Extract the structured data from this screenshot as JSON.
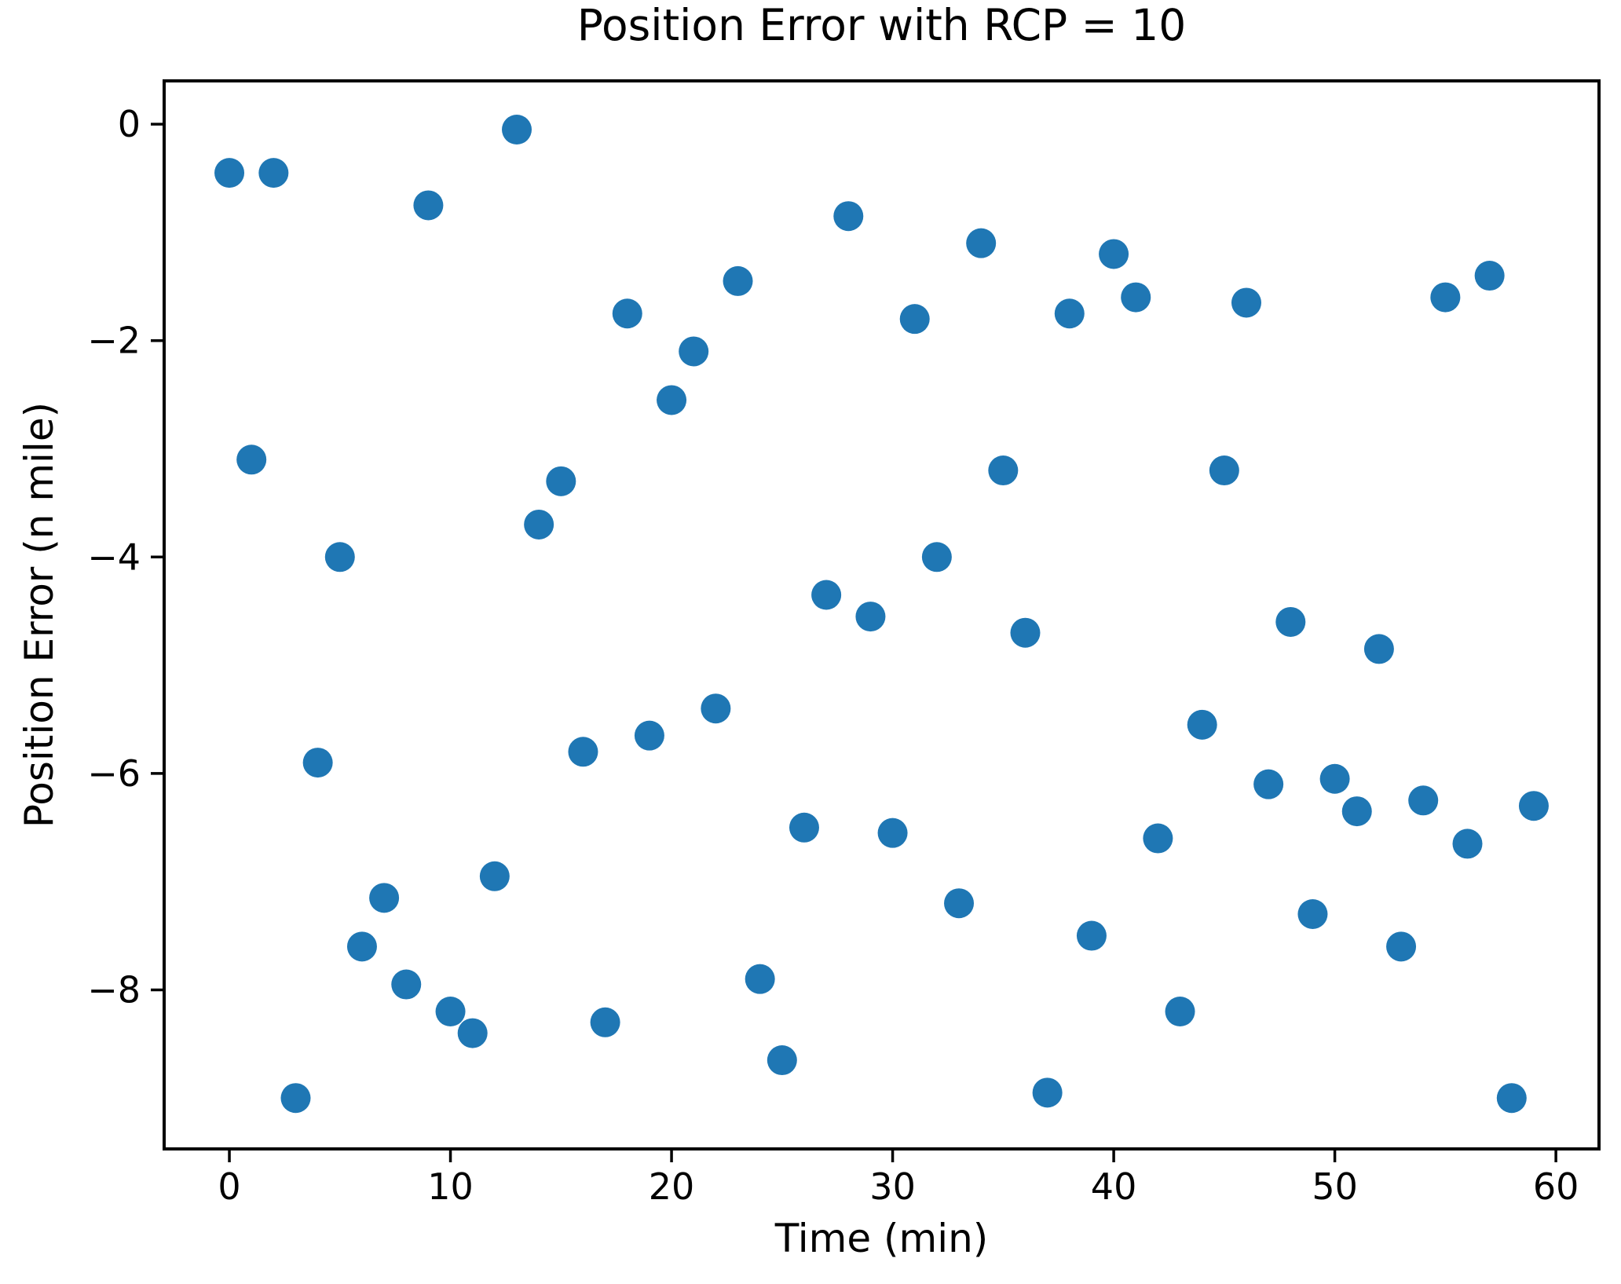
{
  "chart_data": {
    "type": "scatter",
    "title": "Position Error with RCP = 10",
    "xlabel": "Time (min)",
    "ylabel": "Position Error (n mile)",
    "x": [
      0,
      1,
      2,
      3,
      4,
      5,
      6,
      7,
      8,
      9,
      10,
      11,
      12,
      13,
      14,
      15,
      16,
      17,
      18,
      19,
      20,
      21,
      22,
      23,
      24,
      25,
      26,
      27,
      28,
      29,
      30,
      31,
      32,
      33,
      34,
      35,
      36,
      37,
      38,
      39,
      40,
      41,
      42,
      43,
      44,
      45,
      46,
      47,
      48,
      49,
      50,
      51,
      52,
      53,
      54,
      55,
      56,
      57,
      58,
      59
    ],
    "y": [
      -0.45,
      -3.1,
      -0.45,
      -9.0,
      -5.9,
      -4.0,
      -7.6,
      -7.15,
      -7.95,
      -0.75,
      -8.2,
      -8.4,
      -6.95,
      -0.05,
      -3.7,
      -3.3,
      -5.8,
      -8.3,
      -1.75,
      -5.65,
      -2.55,
      -2.1,
      -5.4,
      -1.45,
      -7.9,
      -8.65,
      -6.5,
      -4.35,
      -0.85,
      -4.55,
      -6.55,
      -1.8,
      -4.0,
      -7.2,
      -1.1,
      -3.2,
      -4.7,
      -8.95,
      -1.75,
      -7.5,
      -1.2,
      -1.6,
      -6.6,
      -8.2,
      -5.55,
      -3.2,
      -1.65,
      -6.1,
      -4.6,
      -7.3,
      -6.05,
      -6.35,
      -4.85,
      -7.6,
      -6.25,
      -1.6,
      -6.65,
      -1.4,
      -9.0,
      -6.3
    ],
    "xlim": [
      -2.95,
      61.95
    ],
    "ylim": [
      -9.47,
      0.4
    ],
    "xticks": [
      0,
      10,
      20,
      30,
      40,
      50,
      60
    ],
    "xtick_labels": [
      "0",
      "10",
      "20",
      "30",
      "40",
      "50",
      "60"
    ],
    "yticks": [
      0,
      -2,
      -4,
      -6,
      -8
    ],
    "ytick_labels": [
      "0",
      "−2",
      "−4",
      "−6",
      "−8"
    ],
    "grid": false,
    "legend_position": "none",
    "marker_color": "#1f77b4",
    "marker_radius_px": 19,
    "spine_color": "#000000"
  }
}
